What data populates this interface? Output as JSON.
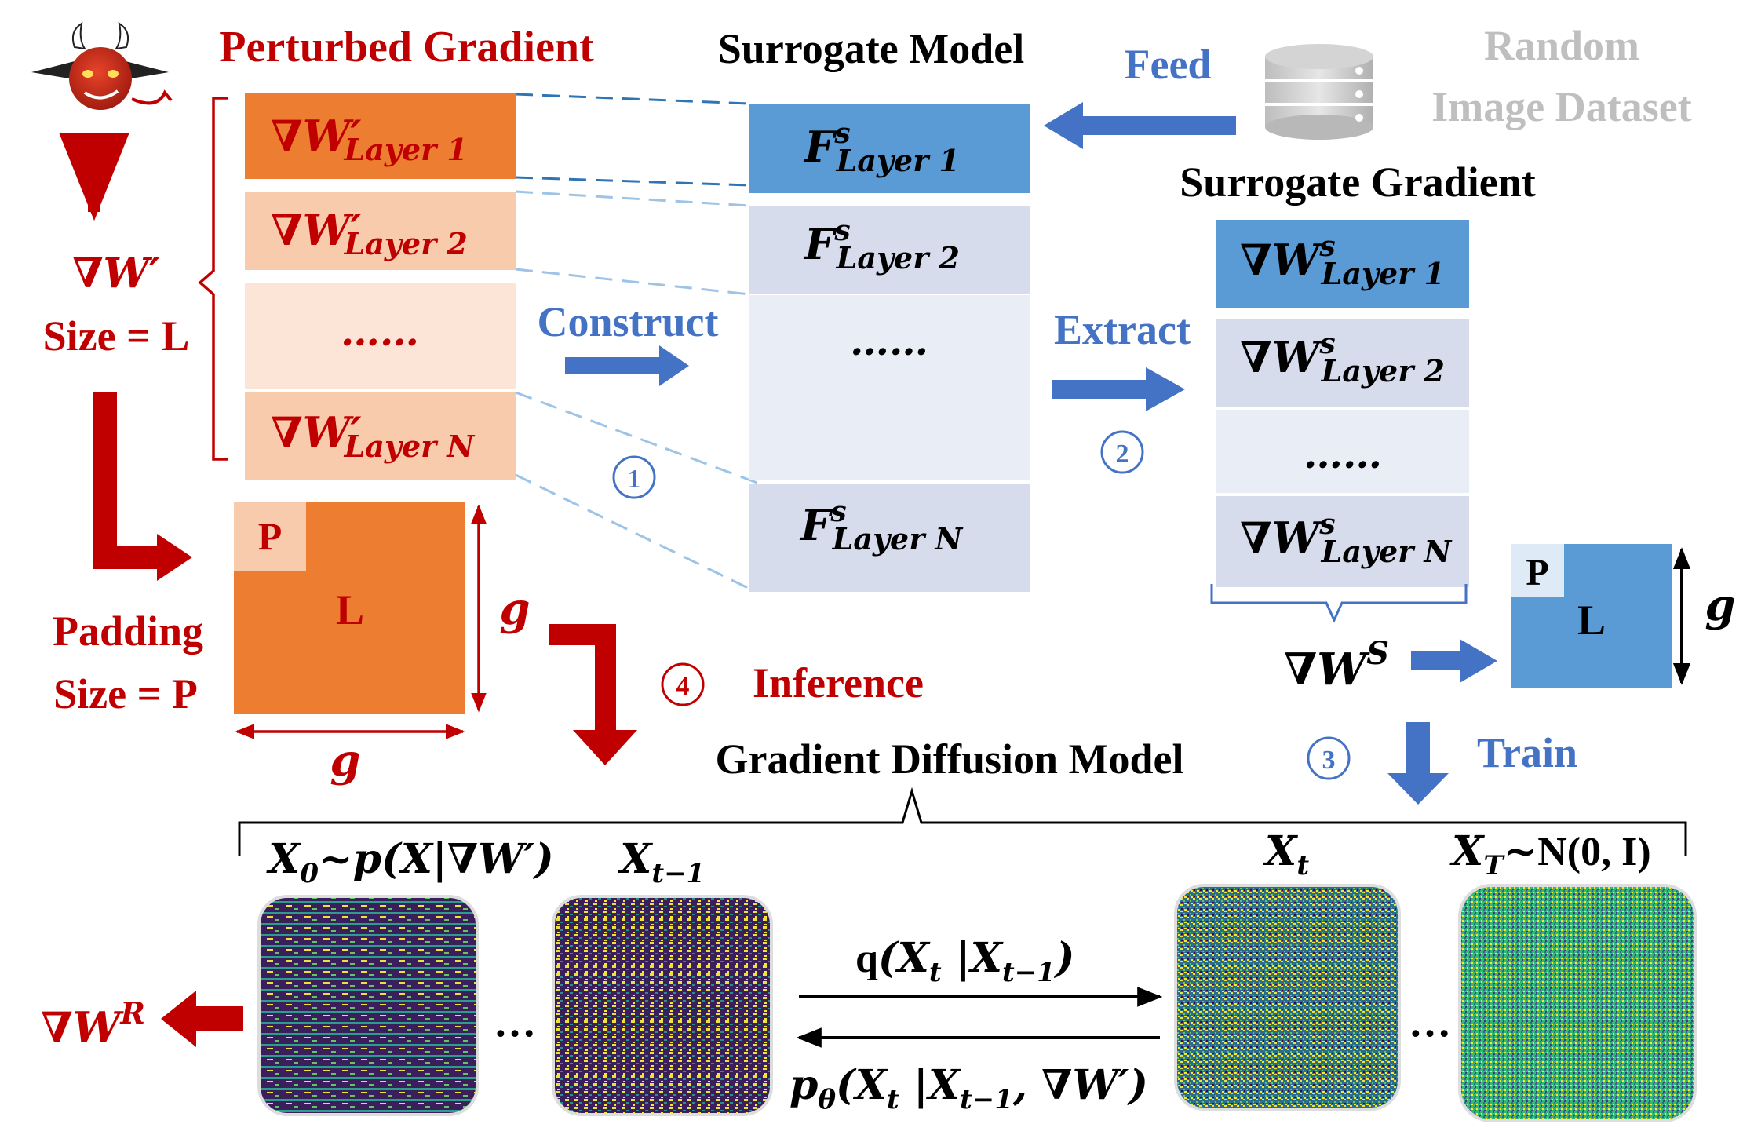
{
  "colors": {
    "red": "#c00000",
    "orange": "#ed7d31",
    "orange_light": "#fadbd0",
    "orange_lighter": "#fce8e1",
    "blue": "#4472c4",
    "blue_box": "#5b9bd5",
    "blue_light": "#d6e0f0",
    "blue_lighter": "#e9eef7",
    "gray": "#bfbfbf",
    "black": "#000000"
  },
  "icons": {
    "attacker": "devil-icon",
    "dataset": "database-icon"
  },
  "perturbed": {
    "title": "Perturbed Gradient",
    "grad_symbol": "∇W′",
    "size_label": "Size = L",
    "layers": [
      "∇W′ Layer 1",
      "∇W′ Layer 2",
      "……",
      "∇W′ Layer N"
    ]
  },
  "surrogate": {
    "title": "Surrogate Model",
    "layers": [
      "F^s Layer 1",
      "F^s Layer 2",
      "……",
      "F^s Layer N"
    ]
  },
  "dataset": {
    "line1": "Random",
    "line2": "Image Dataset",
    "feed": "Feed"
  },
  "surrogate_gradient": {
    "title": "Surrogate Gradient",
    "layers": [
      "∇W^s Layer 1",
      "∇W^s Layer 2",
      "……",
      "∇W^s Layer N"
    ],
    "symbol": "∇W^S"
  },
  "steps": {
    "construct": "Construct",
    "extract": "Extract",
    "train": "Train",
    "inference": "Inference",
    "n1": "1",
    "n2": "2",
    "n3": "3",
    "n4": "4"
  },
  "padding": {
    "label": "Padding",
    "size_label": "Size = P",
    "p": "P",
    "l": "L",
    "g": "g"
  },
  "diffusion": {
    "title": "Gradient Diffusion Model",
    "x0": "X0~p(X|∇W′)",
    "xt1": "Xt−1",
    "xt": "Xt",
    "xT": "XT~N(0, I)",
    "forward": "q(Xt |Xt−1)",
    "reverse": "pθ(Xt |Xt−1, ∇W′)",
    "ellipsis": "…",
    "output": "∇W^R"
  }
}
